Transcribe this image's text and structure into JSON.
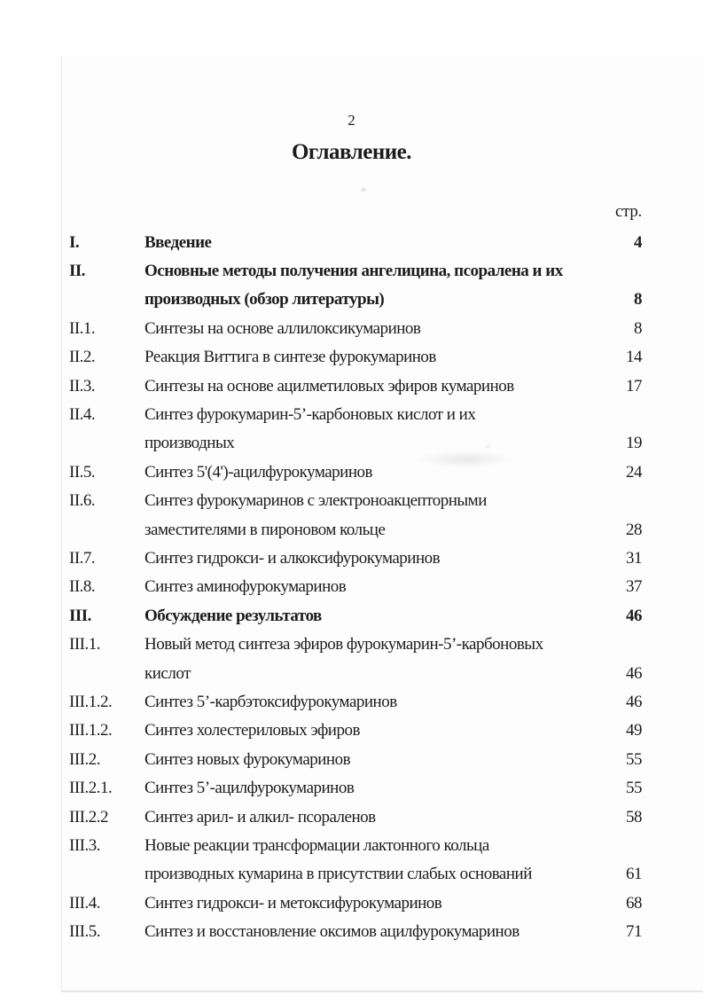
{
  "page": {
    "page_number": "2",
    "title": "Оглавление.",
    "page_column_header": "стр."
  },
  "toc": {
    "rows": [
      {
        "num": "I.",
        "text": "Введение",
        "page": "4",
        "bold": true
      },
      {
        "num": "II.",
        "text": "Основные методы получения ангелицина, псоралена и их",
        "page": "",
        "bold": true
      },
      {
        "num": "",
        "text": "производных (обзор литературы)",
        "page": "8",
        "bold": true
      },
      {
        "num": "II.1.",
        "text": "Синтезы на основе аллилоксикумаринов",
        "page": "8",
        "bold": false
      },
      {
        "num": "II.2.",
        "text": "Реакция Виттига в синтезе фурокумаринов",
        "page": "14",
        "bold": false
      },
      {
        "num": "II.3.",
        "text": "Синтезы на основе ацилметиловых эфиров кумаринов",
        "page": "17",
        "bold": false
      },
      {
        "num": "II.4.",
        "text": "Синтез фурокумарин-5’-карбоновых кислот и их",
        "page": "",
        "bold": false
      },
      {
        "num": "",
        "text": "производных",
        "page": "19",
        "bold": false
      },
      {
        "num": "II.5.",
        "text": "Синтез 5'(4')-ацилфурокумаринов",
        "page": "24",
        "bold": false
      },
      {
        "num": "II.6.",
        "text": "Синтез фурокумаринов с электроноакцепторными",
        "page": "",
        "bold": false
      },
      {
        "num": "",
        "text": "заместителями в пироновом кольце",
        "page": "28",
        "bold": false
      },
      {
        "num": "II.7.",
        "text": "Синтез гидрокси- и алкоксифурокумаринов",
        "page": "31",
        "bold": false
      },
      {
        "num": "II.8.",
        "text": "Синтез аминофурокумаринов",
        "page": "37",
        "bold": false
      },
      {
        "num": "III.",
        "text": "Обсуждение результатов",
        "page": "46",
        "bold": true
      },
      {
        "num": "III.1.",
        "text": "Новый метод синтеза эфиров фурокумарин-5’-карбоновых",
        "page": "",
        "bold": false
      },
      {
        "num": "",
        "text": "кислот",
        "page": "46",
        "bold": false
      },
      {
        "num": "III.1.2.",
        "text": "Синтез 5’-карбэтоксифурокумаринов",
        "page": "46",
        "bold": false
      },
      {
        "num": "III.1.2.",
        "text": "Синтез холестериловых эфиров",
        "page": "49",
        "bold": false
      },
      {
        "num": "III.2.",
        "text": "Синтез новых фурокумаринов",
        "page": "55",
        "bold": false
      },
      {
        "num": "III.2.1.",
        "text": "Синтез 5’-ацилфурокумаринов",
        "page": "55",
        "bold": false
      },
      {
        "num": "III.2.2",
        "text": "Синтез арил- и алкил- псораленов",
        "page": "58",
        "bold": false
      },
      {
        "num": "III.3.",
        "text": "Новые реакции трансформации лактонного кольца",
        "page": "",
        "bold": false
      },
      {
        "num": "",
        "text": "производных кумарина в присутствии слабых оснований",
        "page": "61",
        "bold": false
      },
      {
        "num": "III.4.",
        "text": "Синтез гидрокси- и метоксифурокумаринов",
        "page": "68",
        "bold": false
      },
      {
        "num": "III.5.",
        "text": "Синтез и восстановление оксимов ацилфурокумаринов",
        "page": "71",
        "bold": false
      }
    ]
  }
}
